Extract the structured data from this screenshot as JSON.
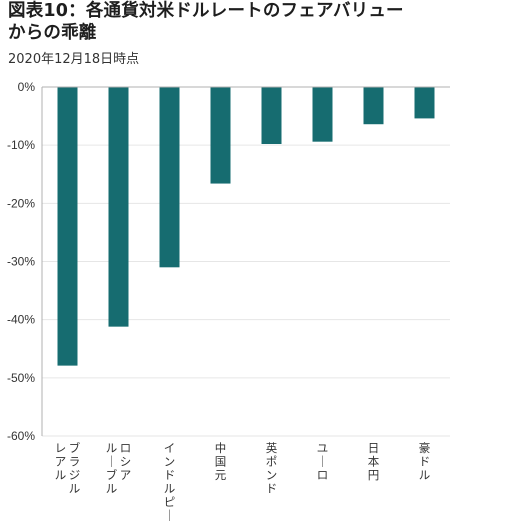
{
  "header": {
    "title_line1": "図表10：各通貨対米ドルレートのフェアバリュー",
    "title_line2": "からの乖離",
    "subtitle": "2020年12月18日時点"
  },
  "colors": {
    "bar": "#166c70",
    "axis": "#b0b0b0",
    "grid": "#e6e6e6"
  },
  "chart_data": {
    "type": "bar",
    "title": "図表10：各通貨対米ドルレートのフェアバリューからの乖離",
    "subtitle": "2020年12月18日時点",
    "categories": [
      [
        "ブラジル",
        "レアル"
      ],
      [
        "ロシア",
        "ルーブル"
      ],
      [
        "インドルピー"
      ],
      [
        "中国元"
      ],
      [
        "英ポンド"
      ],
      [
        "ユーロ"
      ],
      [
        "日本円"
      ],
      [
        "豪ドル"
      ]
    ],
    "values": [
      -47.9,
      -41.2,
      -31.0,
      -16.6,
      -9.8,
      -9.4,
      -6.4,
      -5.4
    ],
    "ylim": [
      -60,
      0
    ],
    "yticks": [
      0,
      -10,
      -20,
      -30,
      -40,
      -50,
      -60
    ],
    "ytick_labels": [
      "0%",
      "-10%",
      "-20%",
      "-30%",
      "-40%",
      "-50%",
      "-60%"
    ],
    "xlabel": "",
    "ylabel": "",
    "grid": true
  }
}
